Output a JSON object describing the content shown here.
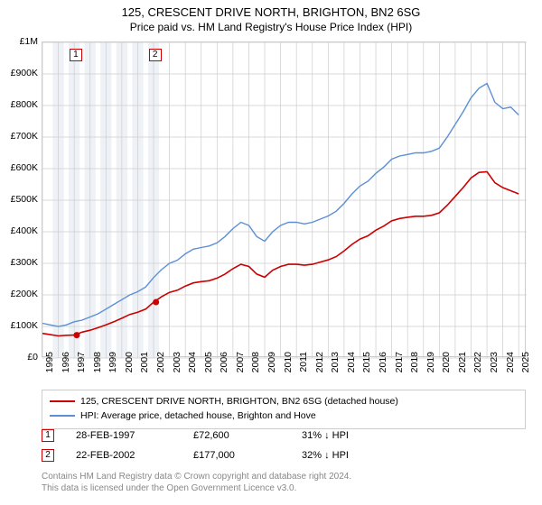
{
  "title": "125, CRESCENT DRIVE NORTH, BRIGHTON, BN2 6SG",
  "subtitle": "Price paid vs. HM Land Registry's House Price Index (HPI)",
  "colors": {
    "series_property": "#cc0000",
    "series_hpi": "#5b8fd6",
    "grid": "#cccccc",
    "band": "#eef2f7",
    "marker_border_1": "#cc0000",
    "marker_border_2": "#cc0000",
    "text": "#000000",
    "footer": "#888888",
    "bg": "#ffffff"
  },
  "chart": {
    "type": "line",
    "xlim": [
      1995,
      2025.5
    ],
    "ylim": [
      0,
      1000000
    ],
    "ytick_step": 100000,
    "ytick_labels": [
      "£0",
      "£100K",
      "£200K",
      "£300K",
      "£400K",
      "£500K",
      "£600K",
      "£700K",
      "£800K",
      "£900K",
      "£1M"
    ],
    "xticks": [
      1995,
      1996,
      1997,
      1998,
      1999,
      2000,
      2001,
      2002,
      2003,
      2004,
      2005,
      2006,
      2007,
      2008,
      2009,
      2010,
      2011,
      2012,
      2013,
      2014,
      2015,
      2016,
      2017,
      2018,
      2019,
      2020,
      2021,
      2022,
      2023,
      2024,
      2025
    ],
    "band_years": [
      1996,
      1997,
      1998,
      1999,
      2000,
      2001,
      2002
    ],
    "series_hpi": [
      [
        1995,
        110000
      ],
      [
        1995.5,
        105000
      ],
      [
        1996,
        100000
      ],
      [
        1996.5,
        105000
      ],
      [
        1997,
        115000
      ],
      [
        1997.5,
        120000
      ],
      [
        1998,
        130000
      ],
      [
        1998.5,
        140000
      ],
      [
        1999,
        155000
      ],
      [
        1999.5,
        170000
      ],
      [
        2000,
        185000
      ],
      [
        2000.5,
        200000
      ],
      [
        2001,
        210000
      ],
      [
        2001.5,
        225000
      ],
      [
        2002,
        255000
      ],
      [
        2002.5,
        280000
      ],
      [
        2003,
        300000
      ],
      [
        2003.5,
        310000
      ],
      [
        2004,
        330000
      ],
      [
        2004.5,
        345000
      ],
      [
        2005,
        350000
      ],
      [
        2005.5,
        355000
      ],
      [
        2006,
        365000
      ],
      [
        2006.5,
        385000
      ],
      [
        2007,
        410000
      ],
      [
        2007.5,
        430000
      ],
      [
        2008,
        420000
      ],
      [
        2008.5,
        385000
      ],
      [
        2009,
        370000
      ],
      [
        2009.5,
        400000
      ],
      [
        2010,
        420000
      ],
      [
        2010.5,
        430000
      ],
      [
        2011,
        430000
      ],
      [
        2011.5,
        425000
      ],
      [
        2012,
        430000
      ],
      [
        2012.5,
        440000
      ],
      [
        2013,
        450000
      ],
      [
        2013.5,
        465000
      ],
      [
        2014,
        490000
      ],
      [
        2014.5,
        520000
      ],
      [
        2015,
        545000
      ],
      [
        2015.5,
        560000
      ],
      [
        2016,
        585000
      ],
      [
        2016.5,
        605000
      ],
      [
        2017,
        630000
      ],
      [
        2017.5,
        640000
      ],
      [
        2018,
        645000
      ],
      [
        2018.5,
        650000
      ],
      [
        2019,
        650000
      ],
      [
        2019.5,
        655000
      ],
      [
        2020,
        665000
      ],
      [
        2020.5,
        700000
      ],
      [
        2021,
        740000
      ],
      [
        2021.5,
        780000
      ],
      [
        2022,
        825000
      ],
      [
        2022.5,
        855000
      ],
      [
        2023,
        870000
      ],
      [
        2023.5,
        810000
      ],
      [
        2024,
        790000
      ],
      [
        2024.5,
        795000
      ],
      [
        2025,
        770000
      ]
    ],
    "series_property": [
      [
        1995,
        78000
      ],
      [
        1995.5,
        74000
      ],
      [
        1996,
        70000
      ],
      [
        1996.5,
        72000
      ],
      [
        1997,
        72600
      ],
      [
        1997.5,
        82000
      ],
      [
        1998,
        88000
      ],
      [
        1998.5,
        96000
      ],
      [
        1999,
        105000
      ],
      [
        1999.5,
        115000
      ],
      [
        2000,
        126000
      ],
      [
        2000.5,
        138000
      ],
      [
        2001,
        145000
      ],
      [
        2001.5,
        155000
      ],
      [
        2002,
        177000
      ],
      [
        2002.5,
        194000
      ],
      [
        2003,
        208000
      ],
      [
        2003.5,
        215000
      ],
      [
        2004,
        228000
      ],
      [
        2004.5,
        238000
      ],
      [
        2005,
        242000
      ],
      [
        2005.5,
        245000
      ],
      [
        2006,
        253000
      ],
      [
        2006.5,
        266000
      ],
      [
        2007,
        283000
      ],
      [
        2007.5,
        297000
      ],
      [
        2008,
        290000
      ],
      [
        2008.5,
        266000
      ],
      [
        2009,
        256000
      ],
      [
        2009.5,
        278000
      ],
      [
        2010,
        290000
      ],
      [
        2010.5,
        297000
      ],
      [
        2011,
        297000
      ],
      [
        2011.5,
        294000
      ],
      [
        2012,
        297000
      ],
      [
        2012.5,
        304000
      ],
      [
        2013,
        311000
      ],
      [
        2013.5,
        321000
      ],
      [
        2014,
        339000
      ],
      [
        2014.5,
        360000
      ],
      [
        2015,
        377000
      ],
      [
        2015.5,
        387000
      ],
      [
        2016,
        405000
      ],
      [
        2016.5,
        418000
      ],
      [
        2017,
        435000
      ],
      [
        2017.5,
        442000
      ],
      [
        2018,
        446000
      ],
      [
        2018.5,
        449000
      ],
      [
        2019,
        449000
      ],
      [
        2019.5,
        452000
      ],
      [
        2020,
        460000
      ],
      [
        2020.5,
        484000
      ],
      [
        2021,
        512000
      ],
      [
        2021.5,
        540000
      ],
      [
        2022,
        571000
      ],
      [
        2022.5,
        588000
      ],
      [
        2023,
        590000
      ],
      [
        2023.5,
        555000
      ],
      [
        2024,
        540000
      ],
      [
        2024.5,
        530000
      ],
      [
        2025,
        520000
      ]
    ],
    "sale_points": [
      {
        "marker": "1",
        "x": 1997.16,
        "y": 72600
      },
      {
        "marker": "2",
        "x": 2002.15,
        "y": 177000
      }
    ]
  },
  "legend": {
    "property": "125, CRESCENT DRIVE NORTH, BRIGHTON, BN2 6SG (detached house)",
    "hpi": "HPI: Average price, detached house, Brighton and Hove"
  },
  "sales": [
    {
      "marker": "1",
      "date": "28-FEB-1997",
      "price": "£72,600",
      "diff": "31% ↓ HPI"
    },
    {
      "marker": "2",
      "date": "22-FEB-2002",
      "price": "£177,000",
      "diff": "32% ↓ HPI"
    }
  ],
  "footer": {
    "line1": "Contains HM Land Registry data © Crown copyright and database right 2024.",
    "line2": "This data is licensed under the Open Government Licence v3.0."
  }
}
